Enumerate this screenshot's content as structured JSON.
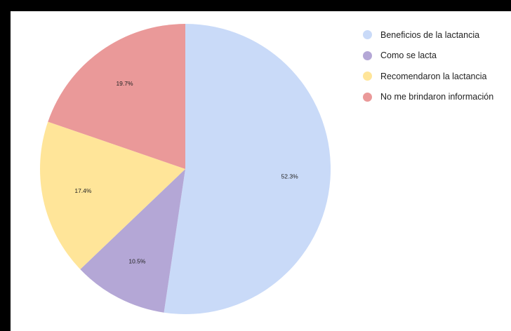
{
  "chart_data": {
    "type": "pie",
    "title": "",
    "slices": [
      {
        "label": "Beneficios de la lactancia",
        "value": 52.3,
        "display": "52.3%",
        "color": "#c9daf8"
      },
      {
        "label": "Como se lacta",
        "value": 10.5,
        "display": "10.5%",
        "color": "#b4a7d6"
      },
      {
        "label": "Recomendaron la lactancia",
        "value": 17.4,
        "display": "17.4%",
        "color": "#ffe599"
      },
      {
        "label": "No me brindaron información",
        "value": 19.7,
        "display": "19.7%",
        "color": "#ea9999"
      }
    ],
    "start_angle": "top",
    "direction": "clockwise",
    "legend_position": "right"
  }
}
